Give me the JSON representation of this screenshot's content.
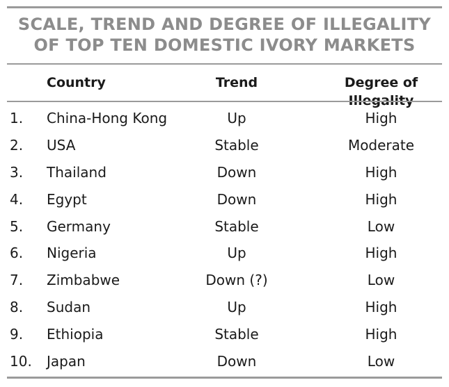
{
  "title": {
    "line1": "SCALE, TREND AND DEGREE OF ILLEGALITY",
    "line2": "OF TOP TEN DOMESTIC IVORY MARKETS"
  },
  "columns": {
    "country": "Country",
    "trend": "Trend",
    "degree": "Degree of Illegality"
  },
  "rows": [
    {
      "num": "1.",
      "country": "China-Hong Kong",
      "trend": "Up",
      "degree": "High"
    },
    {
      "num": "2.",
      "country": "USA",
      "trend": "Stable",
      "degree": "Moderate"
    },
    {
      "num": "3.",
      "country": "Thailand",
      "trend": "Down",
      "degree": "High"
    },
    {
      "num": "4.",
      "country": "Egypt",
      "trend": "Down",
      "degree": "High"
    },
    {
      "num": "5.",
      "country": "Germany",
      "trend": "Stable",
      "degree": "Low"
    },
    {
      "num": "6.",
      "country": "Nigeria",
      "trend": "Up",
      "degree": "High"
    },
    {
      "num": "7.",
      "country": "Zimbabwe",
      "trend": "Down (?)",
      "degree": "Low"
    },
    {
      "num": "8.",
      "country": "Sudan",
      "trend": "Up",
      "degree": "High"
    },
    {
      "num": "9.",
      "country": "Ethiopia",
      "trend": "Stable",
      "degree": "High"
    },
    {
      "num": "10.",
      "country": "Japan",
      "trend": "Down",
      "degree": "Low"
    }
  ],
  "colors": {
    "title": "#8c8c8c",
    "rules": "#9a9a9a",
    "text": "#1a1a1a"
  }
}
